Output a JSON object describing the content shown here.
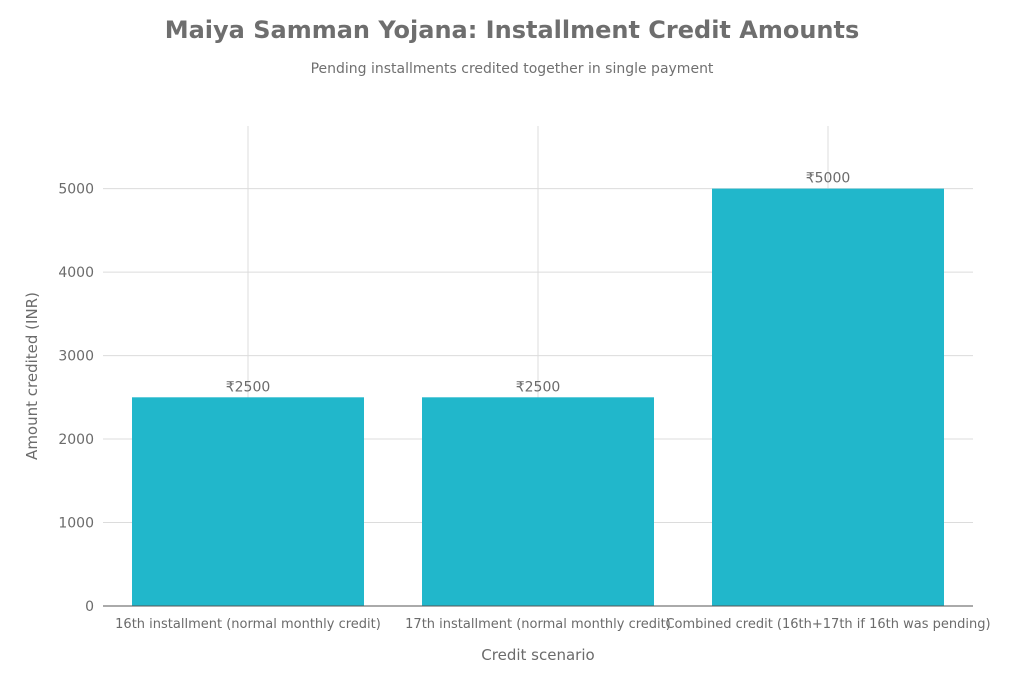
{
  "chart_data": {
    "type": "bar",
    "title": "Maiya Samman Yojana: Installment Credit Amounts",
    "subtitle": "Pending installments credited together in single payment",
    "xlabel": "Credit scenario",
    "ylabel": "Amount credited (INR)",
    "categories": [
      "16th installment (normal monthly credit)",
      "17th installment (normal monthly credit)",
      "Combined credit (16th+17th if 16th was pending)"
    ],
    "values": [
      2500,
      2500,
      5000
    ],
    "value_labels": [
      "₹2500",
      "₹2500",
      "₹5000"
    ],
    "yticks": [
      0,
      1000,
      2000,
      3000,
      4000,
      5000
    ],
    "ylim": [
      0,
      5750
    ],
    "grid": true,
    "bar_color": "#21b7cb",
    "grid_color": "#dcdcdc",
    "axis_color": "#555555",
    "text_color": "#6b6b6b"
  }
}
